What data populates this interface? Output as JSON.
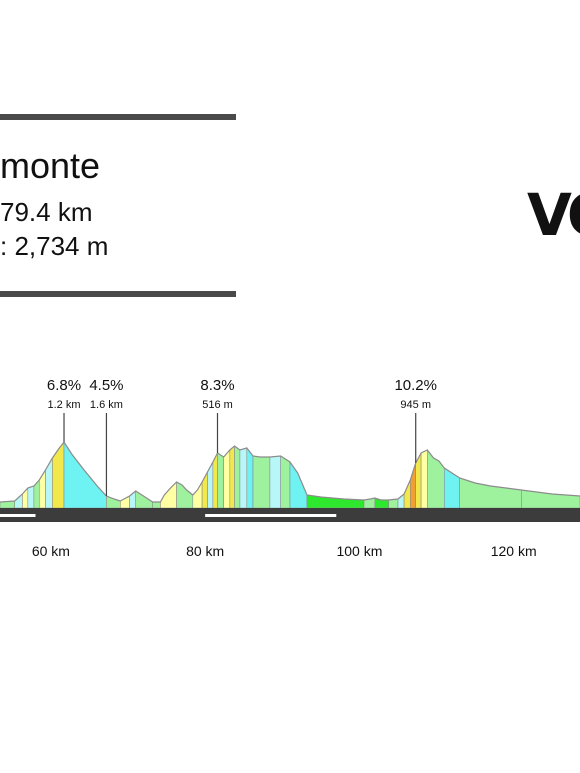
{
  "header": {
    "title": "monte",
    "distance": "79.4 km",
    "elevation": ": 2,734 m"
  },
  "logo": {
    "text": "VO"
  },
  "colors": {
    "outline": "#8c8c8c",
    "road": "#3c3c3c",
    "road_marker": "#ffffff",
    "gradient_scale": [
      "#2ee82e",
      "#9ef29e",
      "#b7f7f7",
      "#6ef2f2",
      "#ffffa3",
      "#f2e84c",
      "#f0a030"
    ]
  },
  "chart_data": {
    "type": "area",
    "x_ticks": [
      {
        "km": 60,
        "label": "60 km"
      },
      {
        "km": 80,
        "label": "80 km"
      },
      {
        "km": 100,
        "label": "100 km"
      },
      {
        "km": 120,
        "label": "120 km"
      }
    ],
    "xlim": [
      53.4,
      128.6
    ],
    "profile": [
      [
        53.4,
        6
      ],
      [
        55.3,
        7
      ],
      [
        56.3,
        14
      ],
      [
        57.0,
        20
      ],
      [
        57.8,
        22
      ],
      [
        58.5,
        28
      ],
      [
        59.3,
        38
      ],
      [
        60.2,
        50
      ],
      [
        61.0,
        59
      ],
      [
        61.7,
        66
      ],
      [
        62.7,
        54
      ],
      [
        64.3,
        38
      ],
      [
        66.0,
        22
      ],
      [
        67.2,
        12
      ],
      [
        68.2,
        9
      ],
      [
        69.0,
        7
      ],
      [
        70.2,
        12
      ],
      [
        71.0,
        17
      ],
      [
        72.2,
        11
      ],
      [
        73.2,
        6
      ],
      [
        74.2,
        6
      ],
      [
        74.7,
        13
      ],
      [
        75.5,
        20
      ],
      [
        76.3,
        26
      ],
      [
        77.0,
        23
      ],
      [
        77.6,
        18
      ],
      [
        78.4,
        13
      ],
      [
        79.0,
        18
      ],
      [
        79.6,
        26
      ],
      [
        80.3,
        36
      ],
      [
        81.0,
        46
      ],
      [
        81.6,
        55
      ],
      [
        82.4,
        51
      ],
      [
        83.2,
        58
      ],
      [
        83.8,
        62
      ],
      [
        84.5,
        58
      ],
      [
        85.4,
        60
      ],
      [
        86.2,
        52
      ],
      [
        87.1,
        51
      ],
      [
        88.4,
        51
      ],
      [
        89.8,
        52
      ],
      [
        91.0,
        46
      ],
      [
        92.0,
        35
      ],
      [
        93.2,
        13
      ],
      [
        95.0,
        11
      ],
      [
        98.0,
        9
      ],
      [
        100.6,
        8
      ],
      [
        101.4,
        9
      ],
      [
        102.0,
        10
      ],
      [
        102.8,
        8
      ],
      [
        103.8,
        8
      ],
      [
        105.0,
        9
      ],
      [
        105.8,
        14
      ],
      [
        106.6,
        28
      ],
      [
        107.3,
        45
      ],
      [
        108.0,
        55
      ],
      [
        108.8,
        58
      ],
      [
        109.6,
        50
      ],
      [
        110.3,
        47
      ],
      [
        111.0,
        40
      ],
      [
        113.0,
        30
      ],
      [
        115.0,
        25
      ],
      [
        117.0,
        22
      ],
      [
        119.0,
        20
      ],
      [
        121.0,
        18
      ],
      [
        123.0,
        16
      ],
      [
        125.0,
        14
      ],
      [
        128.6,
        12
      ]
    ],
    "segments": [
      {
        "from": 53.4,
        "to": 55.3,
        "grade": "0-2"
      },
      {
        "from": 55.3,
        "to": 56.3,
        "grade": "2-4"
      },
      {
        "from": 56.3,
        "to": 57.0,
        "grade": "4-6"
      },
      {
        "from": 57.0,
        "to": 57.8,
        "grade": "2-4"
      },
      {
        "from": 57.8,
        "to": 58.5,
        "grade": "0-2"
      },
      {
        "from": 58.5,
        "to": 59.3,
        "grade": "4-6"
      },
      {
        "from": 59.3,
        "to": 60.2,
        "grade": "2-4"
      },
      {
        "from": 60.2,
        "to": 61.7,
        "grade": "6-8"
      },
      {
        "from": 61.7,
        "to": 67.2,
        "grade": "descent-steep"
      },
      {
        "from": 67.2,
        "to": 69.0,
        "grade": "descent"
      },
      {
        "from": 69.0,
        "to": 70.2,
        "grade": "4-6"
      },
      {
        "from": 70.2,
        "to": 71.0,
        "grade": "2-4"
      },
      {
        "from": 71.0,
        "to": 73.2,
        "grade": "descent"
      },
      {
        "from": 73.2,
        "to": 74.2,
        "grade": "0-2"
      },
      {
        "from": 74.2,
        "to": 76.3,
        "grade": "4-6"
      },
      {
        "from": 76.3,
        "to": 78.4,
        "grade": "descent"
      },
      {
        "from": 78.4,
        "to": 79.6,
        "grade": "4-6"
      },
      {
        "from": 79.6,
        "to": 80.3,
        "grade": "6-8"
      },
      {
        "from": 80.3,
        "to": 81.0,
        "grade": "2-4"
      },
      {
        "from": 81.0,
        "to": 81.6,
        "grade": "6-8"
      },
      {
        "from": 81.6,
        "to": 82.4,
        "grade": "descent"
      },
      {
        "from": 82.4,
        "to": 83.2,
        "grade": "4-6"
      },
      {
        "from": 83.2,
        "to": 83.8,
        "grade": "6-8"
      },
      {
        "from": 83.8,
        "to": 84.5,
        "grade": "descent"
      },
      {
        "from": 84.5,
        "to": 85.4,
        "grade": "2-4"
      },
      {
        "from": 85.4,
        "to": 86.2,
        "grade": "descent-steep"
      },
      {
        "from": 86.2,
        "to": 88.4,
        "grade": "0-2"
      },
      {
        "from": 88.4,
        "to": 89.8,
        "grade": "2-4"
      },
      {
        "from": 89.8,
        "to": 91.0,
        "grade": "descent"
      },
      {
        "from": 91.0,
        "to": 93.2,
        "grade": "descent-steep"
      },
      {
        "from": 93.2,
        "to": 100.6,
        "grade": "flat"
      },
      {
        "from": 100.6,
        "to": 102.0,
        "grade": "0-2"
      },
      {
        "from": 102.0,
        "to": 103.8,
        "grade": "flat"
      },
      {
        "from": 103.8,
        "to": 105.0,
        "grade": "0-2"
      },
      {
        "from": 105.0,
        "to": 105.8,
        "grade": "2-4"
      },
      {
        "from": 105.8,
        "to": 106.6,
        "grade": "6-8"
      },
      {
        "from": 106.6,
        "to": 107.3,
        "grade": "10+"
      },
      {
        "from": 107.3,
        "to": 108.0,
        "grade": "6-8"
      },
      {
        "from": 108.0,
        "to": 108.8,
        "grade": "4-6"
      },
      {
        "from": 108.8,
        "to": 111.0,
        "grade": "descent"
      },
      {
        "from": 111.0,
        "to": 113.0,
        "grade": "descent-steep"
      },
      {
        "from": 113.0,
        "to": 121.0,
        "grade": "descent"
      },
      {
        "from": 121.0,
        "to": 128.6,
        "grade": "0-2"
      }
    ],
    "road_markers": [
      {
        "from": 53.4,
        "to": 58.0
      },
      {
        "from": 80.0,
        "to": 97.0
      }
    ],
    "annotations": [
      {
        "km": 61.7,
        "grade": "6.8%",
        "length": "1.2 km"
      },
      {
        "km": 67.2,
        "grade": "4.5%",
        "length": "1.6 km"
      },
      {
        "km": 81.6,
        "grade": "8.3%",
        "length": "516 m"
      },
      {
        "km": 107.3,
        "grade": "10.2%",
        "length": "945 m"
      }
    ]
  }
}
